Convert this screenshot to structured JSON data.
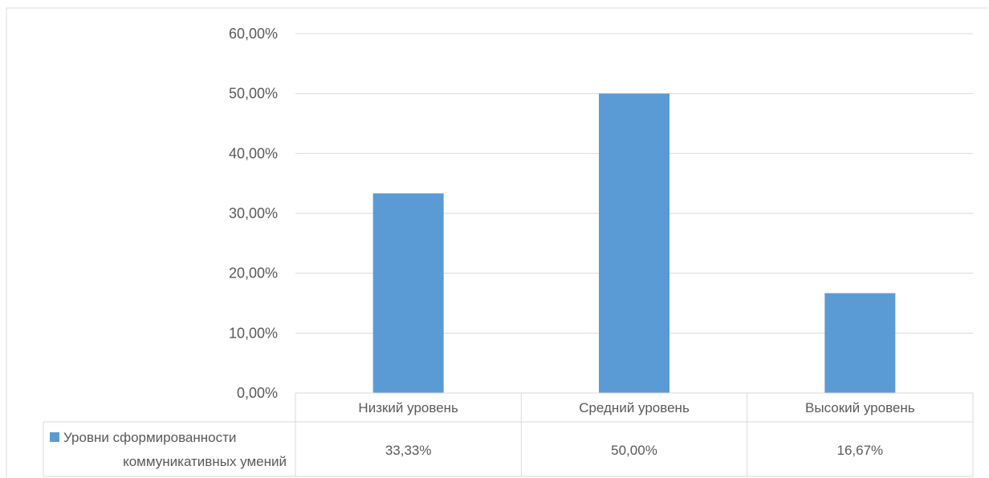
{
  "chart_data": {
    "type": "bar",
    "title": "",
    "xlabel": "",
    "ylabel": "",
    "categories": [
      "Низкий уровень",
      "Средний уровень",
      "Высокий уровень"
    ],
    "series": [
      {
        "name": "Уровни сформированности коммуникативных умений",
        "name_lines": [
          "Уровни сформированности",
          "коммуникативных умений"
        ],
        "values": [
          33.33,
          50.0,
          16.67
        ],
        "value_labels": [
          "33,33%",
          "50,00%",
          "16,67%"
        ],
        "color": "#5b9bd5"
      }
    ],
    "ylim": [
      0,
      60
    ],
    "yticks": [
      0,
      10,
      20,
      30,
      40,
      50,
      60
    ],
    "ytick_labels": [
      "0,00%",
      "10,00%",
      "20,00%",
      "30,00%",
      "40,00%",
      "50,00%",
      "60,00%"
    ],
    "grid": true,
    "legend": "data-table-left",
    "data_table": true,
    "colors": {
      "bar": "#5b9bd5",
      "grid": "#d9d9d9",
      "text": "#595959",
      "border": "#d9d9d9"
    }
  }
}
